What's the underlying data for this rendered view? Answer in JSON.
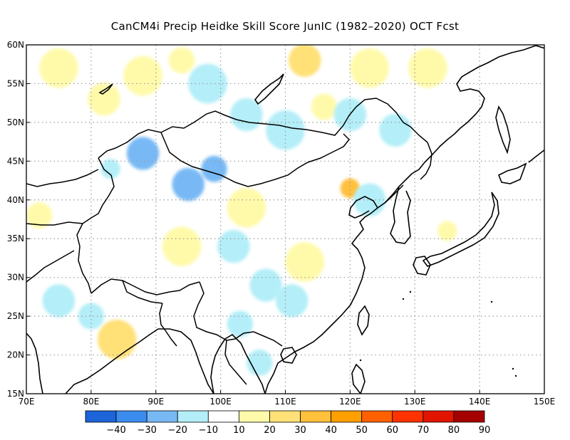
{
  "title": "CanCM4i Precip Heidke Skill Score JunIC (1982–2020) OCT Fcst",
  "map": {
    "lon_range": [
      70,
      150
    ],
    "lat_range": [
      15,
      60
    ],
    "lon_ticks": [
      "70E",
      "80E",
      "90E",
      "100E",
      "110E",
      "120E",
      "130E",
      "140E",
      "150E"
    ],
    "lat_ticks": [
      "15N",
      "20N",
      "25N",
      "30N",
      "35N",
      "40N",
      "45N",
      "50N",
      "55N",
      "60N"
    ],
    "grid": "dotted"
  },
  "colorbar": {
    "labels": [
      "−40",
      "−30",
      "−20",
      "−10",
      "10",
      "20",
      "30",
      "40",
      "50",
      "60",
      "70",
      "80",
      "90"
    ],
    "colors": [
      "#1c64d8",
      "#3c8cf0",
      "#78b9f5",
      "#b4eef8",
      "#ffffff",
      "#fffaaa",
      "#ffe178",
      "#ffc03c",
      "#ff9f00",
      "#ff6000",
      "#ff3200",
      "#e11400",
      "#a50000"
    ]
  },
  "chart_data": {
    "type": "heatmap",
    "title": "CanCM4i Precip Heidke Skill Score JunIC (1982–2020) OCT Fcst",
    "x_range": [
      70,
      150
    ],
    "y_range": [
      15,
      60
    ],
    "levels": [
      -40,
      -30,
      -20,
      -10,
      10,
      20,
      30,
      40,
      50,
      60,
      70,
      80,
      90
    ],
    "patches": [
      {
        "lon": 75,
        "lat": 57,
        "r": 3,
        "v": 15
      },
      {
        "lon": 82,
        "lat": 53,
        "r": 2.5,
        "v": 15
      },
      {
        "lon": 88,
        "lat": 56,
        "r": 3,
        "v": 15
      },
      {
        "lon": 94,
        "lat": 58,
        "r": 2,
        "v": 15
      },
      {
        "lon": 98,
        "lat": 55,
        "r": 3,
        "v": -15
      },
      {
        "lon": 104,
        "lat": 51,
        "r": 2.5,
        "v": -15
      },
      {
        "lon": 110,
        "lat": 49,
        "r": 3,
        "v": -15
      },
      {
        "lon": 113,
        "lat": 58,
        "r": 2.5,
        "v": 25
      },
      {
        "lon": 116,
        "lat": 52,
        "r": 2,
        "v": 15
      },
      {
        "lon": 123,
        "lat": 57,
        "r": 3,
        "v": 15
      },
      {
        "lon": 132,
        "lat": 57,
        "r": 3,
        "v": 15
      },
      {
        "lon": 120,
        "lat": 51,
        "r": 2.5,
        "v": -15
      },
      {
        "lon": 127,
        "lat": 49,
        "r": 2.5,
        "v": -15
      },
      {
        "lon": 88,
        "lat": 46,
        "r": 2.5,
        "v": -25
      },
      {
        "lon": 83,
        "lat": 44,
        "r": 1.5,
        "v": -15
      },
      {
        "lon": 99,
        "lat": 44,
        "r": 2,
        "v": -25
      },
      {
        "lon": 95,
        "lat": 42,
        "r": 2.5,
        "v": -25
      },
      {
        "lon": 104,
        "lat": 39,
        "r": 3,
        "v": 15
      },
      {
        "lon": 120,
        "lat": 41.5,
        "r": 1.5,
        "v": 35
      },
      {
        "lon": 123,
        "lat": 40,
        "r": 2.5,
        "v": -15
      },
      {
        "lon": 102,
        "lat": 34,
        "r": 2.5,
        "v": -15
      },
      {
        "lon": 94,
        "lat": 34,
        "r": 3,
        "v": 15
      },
      {
        "lon": 113,
        "lat": 32,
        "r": 3,
        "v": 15
      },
      {
        "lon": 107,
        "lat": 29,
        "r": 2.5,
        "v": -15
      },
      {
        "lon": 111,
        "lat": 27,
        "r": 2.5,
        "v": -15
      },
      {
        "lon": 103,
        "lat": 24,
        "r": 2,
        "v": -15
      },
      {
        "lon": 84,
        "lat": 22,
        "r": 3,
        "v": 25
      },
      {
        "lon": 75,
        "lat": 27,
        "r": 2.5,
        "v": -15
      },
      {
        "lon": 80,
        "lat": 25,
        "r": 2,
        "v": -15
      },
      {
        "lon": 72,
        "lat": 38,
        "r": 2,
        "v": 15
      },
      {
        "lon": 106,
        "lat": 19,
        "r": 2,
        "v": -15
      },
      {
        "lon": 135,
        "lat": 36,
        "r": 1.5,
        "v": 15
      }
    ]
  }
}
